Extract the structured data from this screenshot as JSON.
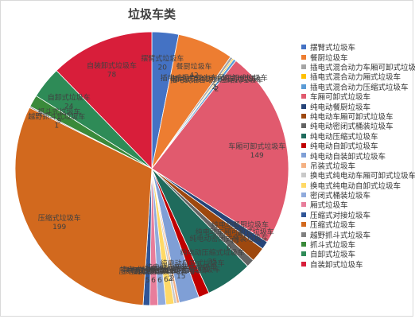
{
  "chart_data": {
    "type": "pie",
    "title": "垃圾车类",
    "slices": [
      {
        "label": "摆臂式垃圾车",
        "value": 20,
        "color": "#4472c4"
      },
      {
        "label": "餐厨垃圾车",
        "value": 42,
        "color": "#ed7d31"
      },
      {
        "label": "插电式混合动力车厢可卸式垃圾车",
        "value": 2,
        "color": "#a5a5a5"
      },
      {
        "label": "插电式混合动力厢式垃圾车",
        "value": 1,
        "color": "#ffc000"
      },
      {
        "label": "插电式混合动力压缩式垃圾车",
        "value": 2,
        "color": "#5b9bd5"
      },
      {
        "label": "车厢可卸式垃圾车",
        "value": 149,
        "color": "#e15a6e"
      },
      {
        "label": "纯电动餐厨垃圾车",
        "value": 6,
        "color": "#264478"
      },
      {
        "label": "纯电动车厢可卸式垃圾车",
        "value": 11,
        "color": "#9e480e"
      },
      {
        "label": "纯电动密闭式桶装垃圾车",
        "value": 6,
        "color": "#636363"
      },
      {
        "label": "纯电动压缩式垃圾车",
        "value": 35,
        "color": "#1f6b5c"
      },
      {
        "label": "纯电动自卸式垃圾车",
        "value": 8,
        "color": "#c00000"
      },
      {
        "label": "纯电动自装卸式垃圾车",
        "value": 15,
        "color": "#7f9fd6"
      },
      {
        "label": "吊装式垃圾车",
        "value": 2,
        "color": "#f4b183"
      },
      {
        "label": "换电式纯电动车厢可卸式垃圾车",
        "value": 2,
        "color": "#c9c9c9"
      },
      {
        "label": "换电式纯电动自卸式垃圾车",
        "value": 6,
        "color": "#ffd966"
      },
      {
        "label": "密闭式桶装垃圾车",
        "value": 6,
        "color": "#8faadc"
      },
      {
        "label": "厢式垃圾车",
        "value": 6,
        "color": "#e87d9b"
      },
      {
        "label": "压缩式对接垃圾车",
        "value": 5,
        "color": "#2f5597"
      },
      {
        "label": "压缩式垃圾车",
        "value": 199,
        "color": "#d2691e"
      },
      {
        "label": "越野抓斗式垃圾车",
        "value": 1,
        "color": "#808080"
      },
      {
        "label": "抓斗式垃圾车",
        "value": 9,
        "color": "#3a8a3a"
      },
      {
        "label": "自卸式垃圾车",
        "value": 24,
        "color": "#2e8b57"
      },
      {
        "label": "自装卸式垃圾车",
        "value": 78,
        "color": "#d81e3a"
      }
    ],
    "legend": "right"
  }
}
